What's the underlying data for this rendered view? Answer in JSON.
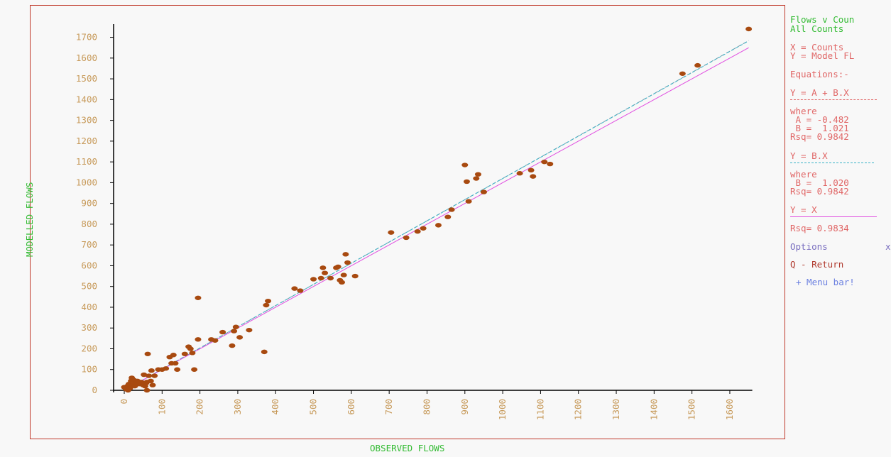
{
  "chart_data": {
    "type": "scatter",
    "title": "",
    "xlabel": "OBSERVED FLOWS",
    "ylabel": "MODELLED FLOWS",
    "xlim": [
      0,
      1650
    ],
    "ylim": [
      0,
      1750
    ],
    "x_ticks": [
      "0",
      "100",
      "200",
      "300",
      "400",
      "500",
      "600",
      "700",
      "800",
      "900",
      "1000",
      "1100",
      "1200",
      "1300",
      "1400",
      "1500",
      "1600"
    ],
    "y_ticks": [
      "0",
      "100",
      "200",
      "300",
      "400",
      "500",
      "600",
      "700",
      "800",
      "900",
      "1000",
      "1100",
      "1200",
      "1300",
      "1400",
      "1500",
      "1600",
      "1700"
    ],
    "grid": false,
    "points": [
      [
        0,
        15
      ],
      [
        5,
        5
      ],
      [
        8,
        20
      ],
      [
        10,
        0
      ],
      [
        12,
        30
      ],
      [
        15,
        10
      ],
      [
        18,
        45
      ],
      [
        20,
        60
      ],
      [
        22,
        25
      ],
      [
        25,
        50
      ],
      [
        28,
        20
      ],
      [
        30,
        40
      ],
      [
        32,
        35
      ],
      [
        35,
        45
      ],
      [
        40,
        30
      ],
      [
        45,
        40
      ],
      [
        50,
        25
      ],
      [
        52,
        75
      ],
      [
        55,
        20
      ],
      [
        58,
        35
      ],
      [
        60,
        40
      ],
      [
        60,
        0
      ],
      [
        62,
        175
      ],
      [
        65,
        70
      ],
      [
        70,
        45
      ],
      [
        72,
        95
      ],
      [
        75,
        25
      ],
      [
        80,
        70
      ],
      [
        90,
        100
      ],
      [
        100,
        100
      ],
      [
        110,
        105
      ],
      [
        120,
        160
      ],
      [
        125,
        130
      ],
      [
        130,
        170
      ],
      [
        135,
        130
      ],
      [
        140,
        100
      ],
      [
        160,
        175
      ],
      [
        170,
        210
      ],
      [
        175,
        200
      ],
      [
        180,
        180
      ],
      [
        185,
        100
      ],
      [
        195,
        245
      ],
      [
        195,
        445
      ],
      [
        230,
        245
      ],
      [
        240,
        240
      ],
      [
        260,
        280
      ],
      [
        285,
        215
      ],
      [
        290,
        285
      ],
      [
        295,
        305
      ],
      [
        305,
        255
      ],
      [
        330,
        290
      ],
      [
        370,
        185
      ],
      [
        375,
        410
      ],
      [
        380,
        430
      ],
      [
        450,
        490
      ],
      [
        465,
        480
      ],
      [
        500,
        535
      ],
      [
        520,
        540
      ],
      [
        525,
        590
      ],
      [
        530,
        565
      ],
      [
        545,
        540
      ],
      [
        560,
        590
      ],
      [
        565,
        595
      ],
      [
        570,
        530
      ],
      [
        575,
        520
      ],
      [
        580,
        555
      ],
      [
        585,
        655
      ],
      [
        590,
        615
      ],
      [
        610,
        550
      ],
      [
        705,
        760
      ],
      [
        745,
        735
      ],
      [
        775,
        765
      ],
      [
        790,
        780
      ],
      [
        830,
        795
      ],
      [
        855,
        835
      ],
      [
        865,
        870
      ],
      [
        900,
        1085
      ],
      [
        905,
        1005
      ],
      [
        910,
        910
      ],
      [
        930,
        1020
      ],
      [
        935,
        1040
      ],
      [
        950,
        955
      ],
      [
        1045,
        1045
      ],
      [
        1075,
        1060
      ],
      [
        1080,
        1030
      ],
      [
        1110,
        1100
      ],
      [
        1125,
        1090
      ],
      [
        1475,
        1525
      ],
      [
        1515,
        1565
      ],
      [
        1650,
        1740
      ]
    ],
    "point_color": "#a84a10",
    "lines": [
      {
        "name": "Y = A + B.X",
        "a": -0.482,
        "b": 1.021,
        "color": "#6a9aaa"
      },
      {
        "name": "Y = B.X",
        "a": 0,
        "b": 1.02,
        "color": "#3ab3c8"
      },
      {
        "name": "Y = X",
        "a": 0,
        "b": 1.0,
        "color": "#e04ce0"
      }
    ]
  },
  "side_panel": {
    "title1": "Flows v Coun",
    "title2": "All Counts",
    "x_def": "X = Counts",
    "y_def": "Y = Model FL",
    "equations": "Equations:-",
    "eq1": "Y = A + B.X",
    "where1": "where",
    "a1": " A = -0.482",
    "b1": " B =  1.021",
    "rsq1": "Rsq= 0.9842",
    "eq2": "Y = B.X",
    "where2": "where",
    "b2": " B =  1.020",
    "rsq2": "Rsq= 0.9842",
    "eq3": "Y = X",
    "rsq3": "Rsq= 0.9834",
    "options": "Options",
    "options_x": "x",
    "return": "Q - Return",
    "menu": "+ Menu bar!"
  }
}
